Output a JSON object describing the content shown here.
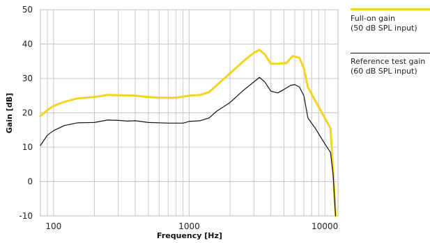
{
  "chart_data": {
    "type": "line",
    "title": "",
    "xlabel": "Frequency [Hz]",
    "ylabel": "Gain [dB]",
    "x_scale": "log",
    "xlim": [
      80,
      12500
    ],
    "ylim": [
      -10,
      50
    ],
    "grid": true,
    "legend_position": "right",
    "x_ticks": [
      {
        "value": 100,
        "label": "100"
      },
      {
        "value": 1000,
        "label": "1000"
      },
      {
        "value": 10000,
        "label": "10000"
      }
    ],
    "y_ticks": [
      {
        "value": 50,
        "label": "50"
      },
      {
        "value": 40,
        "label": "40"
      },
      {
        "value": 30,
        "label": "30"
      },
      {
        "value": 20,
        "label": "20"
      },
      {
        "value": 10,
        "label": "10"
      },
      {
        "value": 0,
        "label": "0"
      },
      {
        "value": -10,
        "label": "-10"
      }
    ],
    "series": [
      {
        "name": "Full-on gain\n(50 dB SPL input)",
        "color": "#f5d41f",
        "points": [
          [
            80,
            19
          ],
          [
            90,
            20.8
          ],
          [
            100,
            22
          ],
          [
            120,
            23.2
          ],
          [
            150,
            24.2
          ],
          [
            200,
            24.6
          ],
          [
            250,
            25.2
          ],
          [
            300,
            25.1
          ],
          [
            400,
            25.0
          ],
          [
            500,
            24.6
          ],
          [
            600,
            24.4
          ],
          [
            800,
            24.4
          ],
          [
            1000,
            25.0
          ],
          [
            1200,
            25.2
          ],
          [
            1400,
            26.0
          ],
          [
            1700,
            29.0
          ],
          [
            2000,
            31.5
          ],
          [
            2500,
            35.0
          ],
          [
            3000,
            37.5
          ],
          [
            3300,
            38.3
          ],
          [
            3600,
            37.0
          ],
          [
            4000,
            34.3
          ],
          [
            4500,
            34.3
          ],
          [
            5200,
            34.5
          ],
          [
            5800,
            36.5
          ],
          [
            6500,
            36.0
          ],
          [
            7000,
            33.0
          ],
          [
            7500,
            27.5
          ],
          [
            8500,
            23.5
          ],
          [
            10000,
            18.5
          ],
          [
            11000,
            15.5
          ],
          [
            11500,
            3.0
          ],
          [
            12000,
            -10
          ]
        ]
      },
      {
        "name": "Reference test gain\n(60 dB SPL input)",
        "color": "#111111",
        "points": [
          [
            80,
            10.5
          ],
          [
            90,
            13.5
          ],
          [
            100,
            14.8
          ],
          [
            120,
            16.3
          ],
          [
            150,
            17.1
          ],
          [
            200,
            17.2
          ],
          [
            250,
            17.9
          ],
          [
            300,
            17.8
          ],
          [
            350,
            17.6
          ],
          [
            400,
            17.7
          ],
          [
            500,
            17.2
          ],
          [
            700,
            17.0
          ],
          [
            900,
            17.0
          ],
          [
            1000,
            17.5
          ],
          [
            1200,
            17.7
          ],
          [
            1400,
            18.5
          ],
          [
            1600,
            20.5
          ],
          [
            2000,
            23.0
          ],
          [
            2500,
            26.5
          ],
          [
            3000,
            29.0
          ],
          [
            3300,
            30.3
          ],
          [
            3600,
            29.0
          ],
          [
            4000,
            26.3
          ],
          [
            4500,
            25.8
          ],
          [
            5000,
            26.8
          ],
          [
            5600,
            28.0
          ],
          [
            6000,
            28.2
          ],
          [
            6500,
            27.5
          ],
          [
            7000,
            25.0
          ],
          [
            7500,
            18.5
          ],
          [
            8500,
            15.5
          ],
          [
            10000,
            11.0
          ],
          [
            11000,
            8.5
          ],
          [
            11500,
            2.0
          ],
          [
            12000,
            -10
          ]
        ]
      }
    ]
  }
}
